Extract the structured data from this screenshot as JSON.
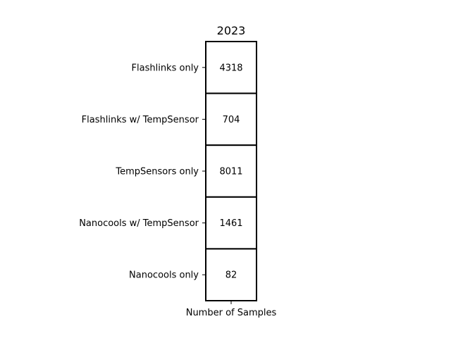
{
  "chart_data": {
    "type": "heatmap",
    "title": "2023",
    "xlabel": "Number of Samples",
    "categories": [
      "Flashlinks only",
      "Flashlinks w/ TempSensor",
      "TempSensors only",
      "Nanocools w/ TempSensor",
      "Nanocools only"
    ],
    "values": [
      4318,
      704,
      8011,
      1461,
      82
    ],
    "cell_color": "#ffffff",
    "border_color": "#000000"
  }
}
